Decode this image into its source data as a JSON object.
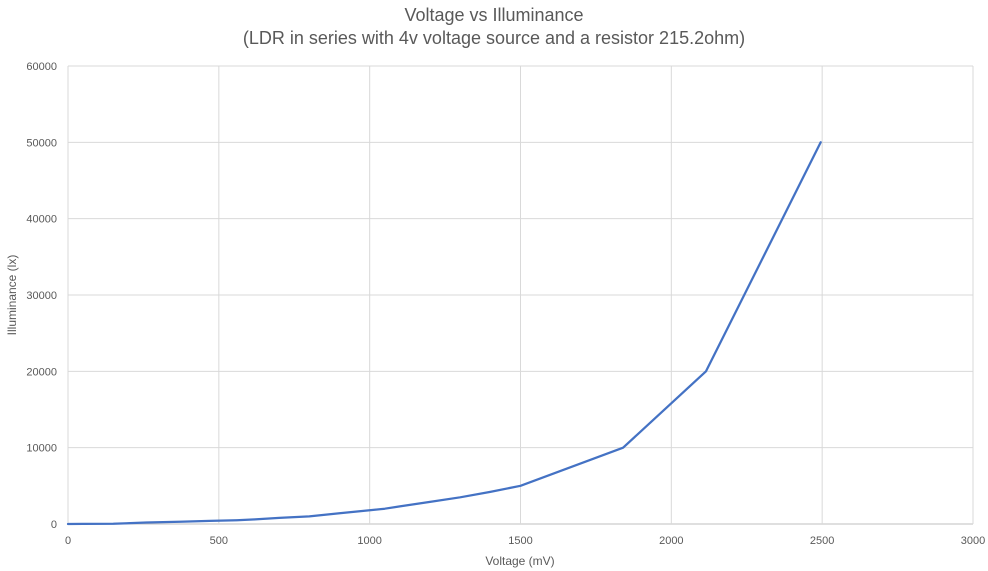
{
  "chart_data": {
    "type": "line",
    "title": "Voltage vs Illuminance",
    "subtitle": "(LDR in series with 4v voltage source and a  resistor 215.2ohm)",
    "xlabel": "Voltage (mV)",
    "ylabel": "Illuminance (lx)",
    "xlim": [
      0,
      3000
    ],
    "ylim": [
      0,
      60000
    ],
    "xticks": [
      0,
      500,
      1000,
      1500,
      2000,
      2500,
      3000
    ],
    "yticks": [
      0,
      10000,
      20000,
      30000,
      40000,
      50000,
      60000
    ],
    "grid": true,
    "legend": "none",
    "series": [
      {
        "color": "#4472C4",
        "x": [
          0,
          50,
          150,
          260,
          370,
          470,
          560,
          620,
          700,
          800,
          900,
          1000,
          1050,
          1100,
          1200,
          1300,
          1400,
          1500,
          1840,
          2115,
          2495
        ],
        "y": [
          0,
          10,
          30,
          200,
          300,
          400,
          500,
          600,
          800,
          1000,
          1400,
          1800,
          2000,
          2300,
          2900,
          3500,
          4200,
          5000,
          10000,
          20000,
          50000
        ]
      }
    ]
  }
}
